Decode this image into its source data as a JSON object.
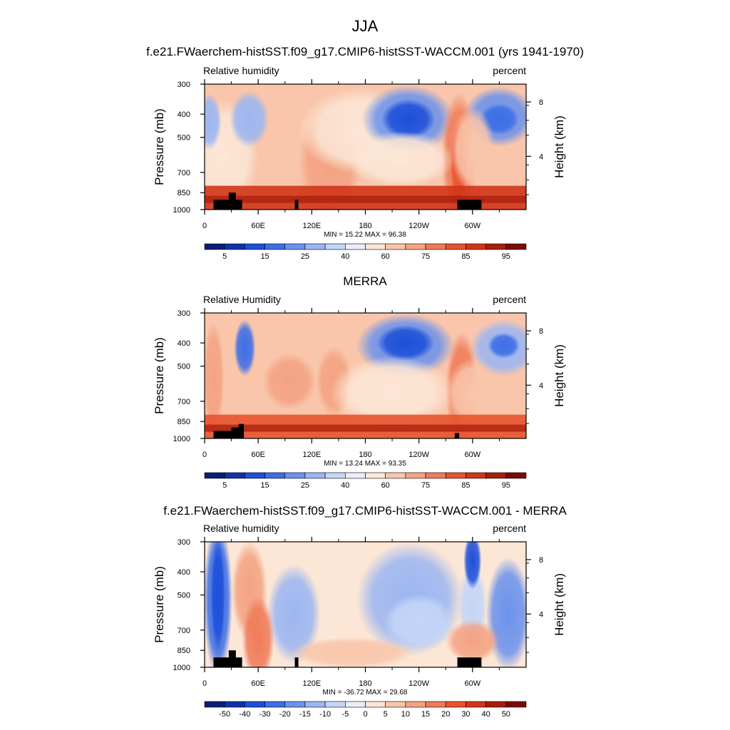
{
  "figure": {
    "title": "JJA"
  },
  "chart_data": [
    {
      "type": "heatmap",
      "title": "f.e21.FWaerchem-histSST.f09_g17.CMIP6-histSST-WACCM.001 (yrs 1941-1970)",
      "field_label": "Relative humidity",
      "units_label": "percent",
      "ylabel": "Pressure (mb)",
      "ylabel_right": "Height (km)",
      "x_ticks": [
        "0",
        "60E",
        "120E",
        "180",
        "120W",
        "60W"
      ],
      "y_ticks": [
        "300",
        "400",
        "500",
        "700",
        "850",
        "1000"
      ],
      "height_ticks": [
        "8",
        "4"
      ],
      "ylim": [
        1000,
        300
      ],
      "xlim": [
        0,
        360
      ],
      "min_max": "MIN =  15.22  MAX =  96.38",
      "min": 15.22,
      "max": 96.38,
      "colorbar": {
        "labels": [
          "5",
          "15",
          "25",
          "40",
          "60",
          "75",
          "85",
          "95"
        ],
        "colors": [
          "#0a1e78",
          "#0f32a8",
          "#1e4fd8",
          "#3c6ee6",
          "#6b92ec",
          "#9bb6f2",
          "#c4d6f7",
          "#e9eefa",
          "#fce6d6",
          "#f9c6ab",
          "#f4a383",
          "#ef7b59",
          "#e8532f",
          "#d03518",
          "#a81e0c",
          "#7a0c04"
        ]
      },
      "topo": "model"
    },
    {
      "type": "heatmap",
      "title": "MERRA",
      "field_label": "Relative Humidity",
      "units_label": "percent",
      "ylabel": "Pressure (mb)",
      "ylabel_right": "Height (km)",
      "x_ticks": [
        "0",
        "60E",
        "120E",
        "180",
        "120W",
        "60W"
      ],
      "y_ticks": [
        "300",
        "400",
        "500",
        "700",
        "850",
        "1000"
      ],
      "height_ticks": [
        "8",
        "4"
      ],
      "ylim": [
        1000,
        300
      ],
      "xlim": [
        0,
        360
      ],
      "min_max": "MIN =  13.24  MAX =  93.35",
      "min": 13.24,
      "max": 93.35,
      "colorbar": {
        "labels": [
          "5",
          "15",
          "25",
          "40",
          "60",
          "75",
          "85",
          "95"
        ],
        "colors": [
          "#0a1e78",
          "#0f32a8",
          "#1e4fd8",
          "#3c6ee6",
          "#6b92ec",
          "#9bb6f2",
          "#c4d6f7",
          "#e9eefa",
          "#fce6d6",
          "#f9c6ab",
          "#f4a383",
          "#ef7b59",
          "#e8532f",
          "#d03518",
          "#a81e0c",
          "#7a0c04"
        ]
      },
      "topo": "merra"
    },
    {
      "type": "heatmap",
      "title": "f.e21.FWaerchem-histSST.f09_g17.CMIP6-histSST-WACCM.001 - MERRA",
      "field_label": "Relative humidity",
      "units_label": "percent",
      "ylabel": "Pressure (mb)",
      "ylabel_right": "Height (km)",
      "x_ticks": [
        "0",
        "60E",
        "120E",
        "180",
        "120W",
        "60W"
      ],
      "y_ticks": [
        "300",
        "400",
        "500",
        "700",
        "850",
        "1000"
      ],
      "height_ticks": [
        "8",
        "4"
      ],
      "ylim": [
        1000,
        300
      ],
      "xlim": [
        0,
        360
      ],
      "min_max": "MIN = -36.72  MAX =  29.68",
      "min": -36.72,
      "max": 29.68,
      "colorbar": {
        "labels": [
          "-50",
          "-40",
          "-30",
          "-20",
          "-15",
          "-10",
          "-5",
          "0",
          "5",
          "10",
          "15",
          "20",
          "30",
          "40",
          "50"
        ],
        "colors": [
          "#0a1e78",
          "#0f32a8",
          "#1e4fd8",
          "#3c6ee6",
          "#6b92ec",
          "#9bb6f2",
          "#c4d6f7",
          "#e9eefa",
          "#fce6d6",
          "#f9c6ab",
          "#f4a383",
          "#ef7b59",
          "#e8532f",
          "#d03518",
          "#a81e0c",
          "#7a0c04"
        ]
      },
      "topo": "model"
    }
  ]
}
